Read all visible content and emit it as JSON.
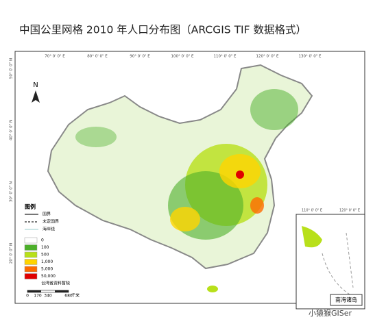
{
  "title": "中国公里网格 2010 年人口分布图（ARCGIS TIF 数据格式）",
  "graticule": {
    "top": [
      "70° 0' 0\" E",
      "80° 0' 0\" E",
      "90° 0' 0\" E",
      "100° 0' 0\" E",
      "110° 0' 0\" E",
      "120° 0' 0\" E",
      "130° 0' 0\" E"
    ],
    "left": [
      "50° 0' 0\" N",
      "40° 0' 0\" N",
      "30° 0' 0\" N",
      "20° 0' 0\" N"
    ],
    "inset_top": [
      "110° 0' 0\" E",
      "120° 0' 0\" E"
    ]
  },
  "north": "N",
  "legend": {
    "title": "图例",
    "lines": [
      {
        "label": "国界",
        "style": "solid"
      },
      {
        "label": "未定国界",
        "style": "dashed"
      },
      {
        "label": "海岸线",
        "style": "coast"
      }
    ],
    "classes": [
      {
        "label": "0",
        "color": "#ffffff"
      },
      {
        "label": "100",
        "color": "#4caf2a"
      },
      {
        "label": "500",
        "color": "#b8e01a"
      },
      {
        "label": "1,000",
        "color": "#ffd400"
      },
      {
        "label": "5,000",
        "color": "#ff6a00"
      },
      {
        "label": "50,000",
        "color": "#e00000"
      }
    ],
    "note": "台湾省资料暂缺"
  },
  "scale_bar": {
    "ticks": [
      "0",
      "170",
      "340",
      "680"
    ],
    "unit": "千米"
  },
  "inset_label": "南海诸岛",
  "watermark": "小猿猴GISer"
}
